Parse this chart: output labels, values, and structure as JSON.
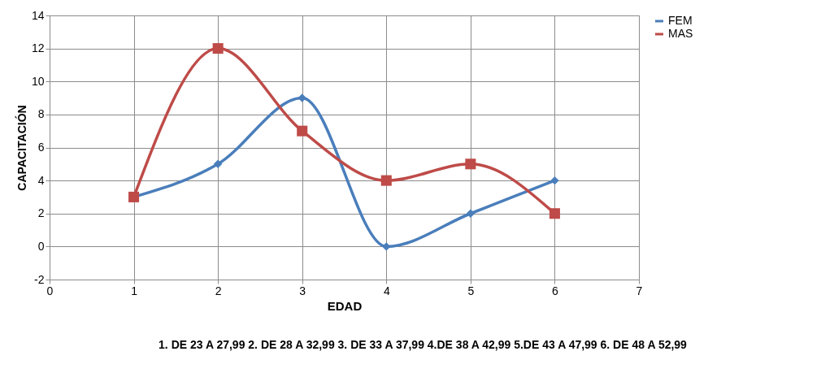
{
  "chart_data": {
    "type": "line",
    "xlabel": "EDAD",
    "ylabel": "CAPACITACIÓN",
    "annotations": [
      "1. DE 23 A 27,99    2. DE 28 A 32,99   3. DE 33 A 37,99   4.DE 38 A 42,99   5.DE 43 A 47,99   6. DE 48 A 52,99"
    ],
    "x": [
      1,
      2,
      3,
      4,
      5,
      6
    ],
    "series": [
      {
        "name": "FEM",
        "color": "#4a7ebb",
        "values": [
          3,
          5,
          9,
          0,
          2,
          4
        ],
        "marker": "diamond"
      },
      {
        "name": "MAS",
        "color": "#be4b48",
        "values": [
          3,
          12,
          7,
          4,
          5,
          2
        ],
        "marker": "square"
      }
    ],
    "xlim": [
      0,
      7
    ],
    "xticks": [
      0,
      1,
      2,
      3,
      4,
      5,
      6,
      7
    ],
    "ylim": [
      -2,
      14
    ],
    "yticks": [
      -2,
      0,
      2,
      4,
      6,
      8,
      10,
      12,
      14
    ],
    "grid": true,
    "legend": "right",
    "line_style": "solid"
  }
}
